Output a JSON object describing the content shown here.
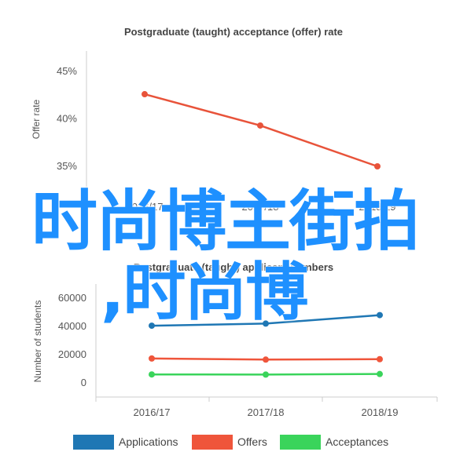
{
  "chart_data": [
    {
      "type": "line",
      "title": "Postgraduate (taught) acceptance (offer) rate",
      "xlabel": "",
      "ylabel": "Offer rate",
      "categories": [
        "2016/17",
        "2017/18",
        "2018/19"
      ],
      "yticks": [
        "45%",
        "40%",
        "35%"
      ],
      "ylim": [
        0.34,
        0.46
      ],
      "series": [
        {
          "values": [
            0.426,
            0.393,
            0.35
          ],
          "color": "#e8533a"
        }
      ],
      "grid": false
    },
    {
      "type": "line",
      "title": "Postgraduate (taught) applicant numbers",
      "xlabel": "",
      "ylabel": "Number of students",
      "categories": [
        "2016/17",
        "2017/18",
        "2018/19"
      ],
      "yticks": [
        "60000",
        "40000",
        "20000",
        "0"
      ],
      "ylim": [
        -5000,
        68000
      ],
      "series": [
        {
          "name": "Applications",
          "values": [
            40500,
            42000,
            48000
          ],
          "color": "#1f77b4"
        },
        {
          "name": "Offers",
          "values": [
            17300,
            16500,
            16800
          ],
          "color": "#ef553b"
        },
        {
          "name": "Acceptances",
          "values": [
            6000,
            5900,
            6300
          ],
          "color": "#3ad45b"
        }
      ],
      "legend": "bottom",
      "grid": false
    }
  ],
  "watermark": {
    "line1": "时尚博主街拍",
    "line2": ",时尚博",
    "color": "#1e90ff"
  }
}
